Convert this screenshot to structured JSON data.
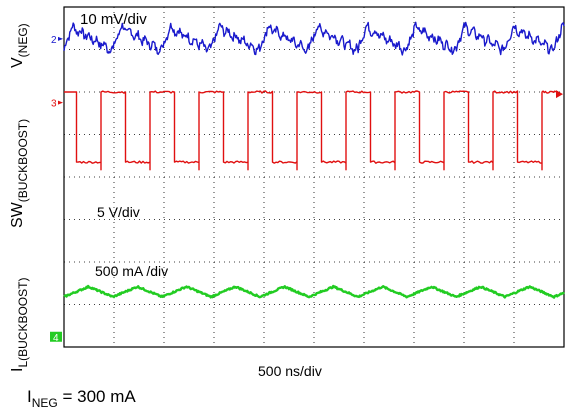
{
  "chart_data": {
    "type": "line",
    "x_scale_label": "500 ns/div",
    "caption": {
      "main": "I",
      "sub": "NEG",
      "rest": " = 300 mA"
    },
    "grid": true,
    "divisions": {
      "x": 10,
      "y": 8
    },
    "series": [
      {
        "name": "V(NEG)",
        "label_main": "V",
        "label_sub": "(NEG)",
        "marker": "2",
        "scale": "10 mV/div",
        "color": "#1a1acc",
        "baseline_div": 7.25,
        "waveform": "ripple",
        "period_div": 0.98,
        "amplitude_div": 0.28
      },
      {
        "name": "SW(BUCKBOOST)",
        "label_main": "SW",
        "label_sub": "(BUCKBOOST)",
        "marker": "3",
        "scale": "5 V/div",
        "color": "#e01010",
        "baseline_div": 5.75,
        "waveform": "square",
        "low_div": 4.35,
        "high_div": 6.0,
        "period_div": 0.98,
        "duty": 0.5
      },
      {
        "name": "IL(BUCKBOOST)",
        "label_main": "I",
        "label_sub": "L(BUCKBOOST)",
        "marker": "4",
        "scale": "500 mA /div",
        "color": "#22cc22",
        "baseline_div": 1.3,
        "waveform": "triangle",
        "period_div": 0.98,
        "amplitude_div": 0.12
      }
    ]
  }
}
